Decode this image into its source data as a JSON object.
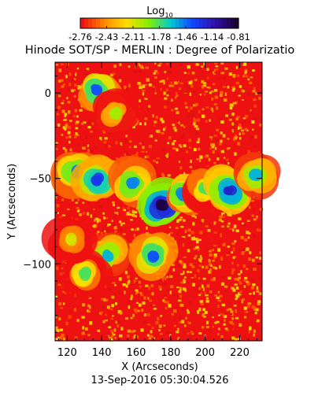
{
  "chart_data": {
    "type": "heatmap",
    "title": "Hinode SOT/SP - MERLIN : Degree of Polarizatio",
    "colorbar": {
      "label": "Log",
      "label_subscript": "10",
      "tick_labels": [
        "-2.76",
        "-2.43",
        "-2.11",
        "-1.78",
        "-1.46",
        "-1.14",
        "-0.81"
      ],
      "range": [
        -2.76,
        -0.81
      ],
      "colormap": [
        "#ee1111",
        "#ff8800",
        "#ffdd00",
        "#88ee00",
        "#00cccc",
        "#1144ff",
        "#3311aa",
        "#1a0033"
      ]
    },
    "xlabel": "X (Arcseconds)",
    "ylabel": "Y (Arcseconds)",
    "xlim": [
      113,
      233
    ],
    "ylim": [
      -145,
      18
    ],
    "x_ticks": [
      120,
      140,
      160,
      180,
      200,
      220
    ],
    "y_ticks": [
      0,
      -50,
      -100
    ],
    "x_tick_labels": [
      "120",
      "140",
      "160",
      "180",
      "200",
      "220"
    ],
    "y_tick_labels": [
      "0",
      "−50",
      "−100"
    ],
    "features": [
      {
        "x": 137,
        "y": 2,
        "value": -1.4
      },
      {
        "x": 148,
        "y": -12,
        "value": -2.0
      },
      {
        "x": 125,
        "y": -46,
        "value": -1.5
      },
      {
        "x": 137,
        "y": -51,
        "value": -1.3
      },
      {
        "x": 158,
        "y": -53,
        "value": -1.5
      },
      {
        "x": 175,
        "y": -66,
        "value": -0.85
      },
      {
        "x": 187,
        "y": -59,
        "value": -1.5
      },
      {
        "x": 200,
        "y": -56,
        "value": -1.8
      },
      {
        "x": 214,
        "y": -57,
        "value": -1.2
      },
      {
        "x": 229,
        "y": -48,
        "value": -1.6
      },
      {
        "x": 143,
        "y": -95,
        "value": -1.6
      },
      {
        "x": 170,
        "y": -95,
        "value": -1.4
      },
      {
        "x": 130,
        "y": -106,
        "value": -1.8
      },
      {
        "x": 122,
        "y": -86,
        "value": -2.1
      }
    ],
    "background_value": -2.65,
    "grid": false,
    "timestamp": "13-Sep-2016 05:30:04.526"
  }
}
